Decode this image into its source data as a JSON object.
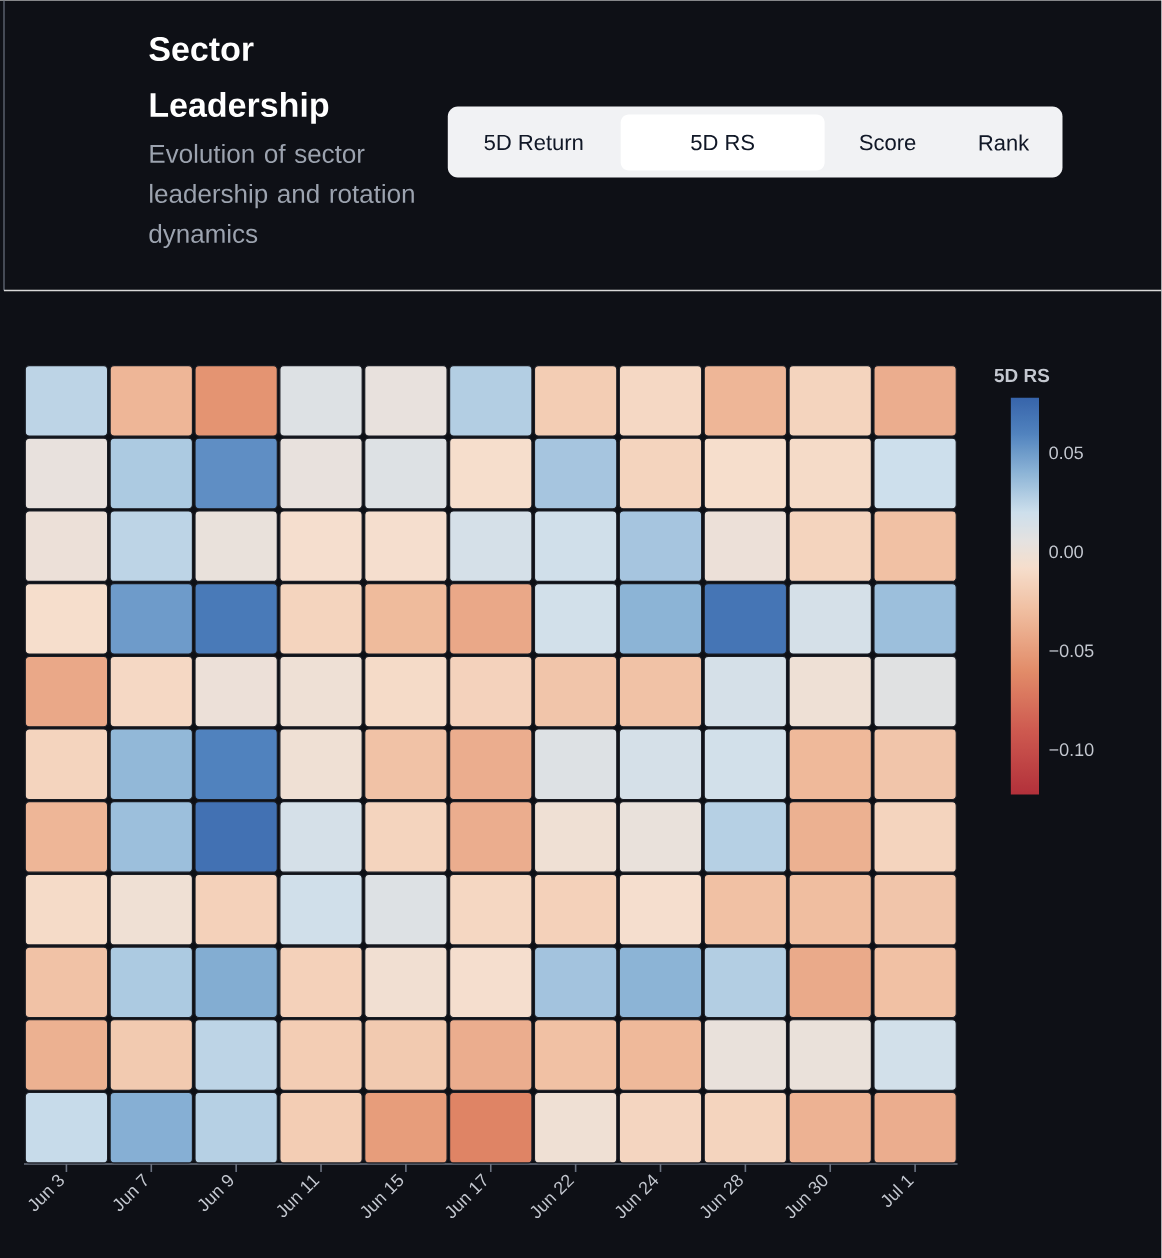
{
  "chart_data": {
    "type": "heatmap",
    "title": "Sector Leadership",
    "subtitle": "Evolution of sector leadership and rotation dynamics",
    "annotations": [
      "5D Return",
      "5D RS",
      "Score",
      "Rank"
    ],
    "categories": [
      "Jun 3",
      "Jun 7",
      "Jun 9",
      "Jun 11",
      "Jun 15",
      "Jun 17",
      "Jun 22",
      "Jun 24",
      "Jun 28",
      "Jun 30",
      "Jul 1"
    ],
    "y_categories": [
      null,
      null,
      null,
      null,
      null,
      null,
      null,
      null,
      null,
      null,
      null
    ],
    "cells": [
      [
        0.025,
        -0.035,
        -0.055,
        0.01,
        0.003,
        0.028,
        -0.02,
        -0.012,
        -0.035,
        -0.015,
        -0.04
      ],
      [
        0.003,
        0.03,
        0.055,
        0.003,
        0.01,
        -0.008,
        0.032,
        -0.015,
        -0.008,
        -0.01,
        0.02
      ],
      [
        0.0,
        0.025,
        0.002,
        -0.007,
        -0.007,
        0.015,
        0.018,
        0.032,
        0.0,
        -0.015,
        -0.028
      ],
      [
        -0.008,
        0.05,
        0.065,
        -0.015,
        -0.032,
        -0.043,
        0.017,
        0.04,
        0.068,
        0.015,
        0.035
      ],
      [
        -0.043,
        -0.012,
        0.0,
        -0.002,
        -0.01,
        -0.016,
        -0.025,
        -0.027,
        0.015,
        -0.002,
        0.008
      ],
      [
        -0.015,
        0.038,
        0.06,
        -0.003,
        -0.027,
        -0.04,
        0.01,
        0.015,
        0.017,
        -0.033,
        -0.025
      ],
      [
        -0.035,
        0.035,
        0.07,
        0.015,
        -0.015,
        -0.04,
        -0.003,
        0.002,
        0.027,
        -0.038,
        -0.015
      ],
      [
        -0.01,
        -0.003,
        -0.017,
        0.018,
        0.01,
        -0.013,
        -0.017,
        -0.007,
        -0.028,
        -0.03,
        -0.025
      ],
      [
        -0.027,
        0.03,
        0.043,
        -0.017,
        -0.004,
        -0.007,
        0.033,
        0.04,
        0.028,
        -0.042,
        -0.028
      ],
      [
        -0.038,
        -0.022,
        0.025,
        -0.02,
        -0.022,
        -0.04,
        -0.028,
        -0.033,
        0.002,
        0.001,
        0.017
      ],
      [
        0.022,
        0.042,
        0.027,
        -0.02,
        -0.05,
        -0.065,
        -0.003,
        -0.014,
        -0.015,
        -0.037,
        -0.04
      ]
    ],
    "clim": [
      -0.123,
      0.078
    ],
    "cticks": [
      {
        "value": 0.05,
        "label": "0.05"
      },
      {
        "value": 0,
        "label": "0.00"
      },
      {
        "value": -0.05,
        "label": "−0.05"
      },
      {
        "value": -0.1,
        "label": "−0.10"
      }
    ],
    "clabel": "5D RS"
  }
}
